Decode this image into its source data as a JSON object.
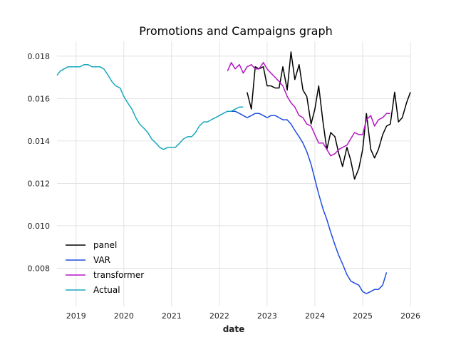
{
  "chart_data": {
    "type": "line",
    "title": "Promotions and Campaigns graph",
    "xlabel": "date",
    "ylabel": "",
    "xlim": [
      2018.6,
      2026.0
    ],
    "ylim": [
      0.0062,
      0.0187
    ],
    "x_ticks": [
      {
        "value": 2019,
        "label": "2019"
      },
      {
        "value": 2020,
        "label": "2020"
      },
      {
        "value": 2021,
        "label": "2021"
      },
      {
        "value": 2022,
        "label": "2022"
      },
      {
        "value": 2023,
        "label": "2023"
      },
      {
        "value": 2024,
        "label": "2024"
      },
      {
        "value": 2025,
        "label": "2025"
      },
      {
        "value": 2026,
        "label": "2026"
      }
    ],
    "y_ticks": [
      {
        "value": 0.008,
        "label": "0.008"
      },
      {
        "value": 0.01,
        "label": "0.010"
      },
      {
        "value": 0.012,
        "label": "0.012"
      },
      {
        "value": 0.014,
        "label": "0.014"
      },
      {
        "value": 0.016,
        "label": "0.016"
      },
      {
        "value": 0.018,
        "label": "0.018"
      }
    ],
    "grid": true,
    "legend_position": "bottom-left",
    "series": [
      {
        "name": "panel",
        "color": "#000000",
        "points": [
          [
            2022.58,
            0.0163
          ],
          [
            2022.67,
            0.0155
          ],
          [
            2022.75,
            0.0175
          ],
          [
            2022.83,
            0.0174
          ],
          [
            2022.92,
            0.0175
          ],
          [
            2023.0,
            0.0166
          ],
          [
            2023.08,
            0.0166
          ],
          [
            2023.17,
            0.0165
          ],
          [
            2023.25,
            0.0165
          ],
          [
            2023.33,
            0.0175
          ],
          [
            2023.42,
            0.0164
          ],
          [
            2023.5,
            0.0182
          ],
          [
            2023.58,
            0.0169
          ],
          [
            2023.67,
            0.0176
          ],
          [
            2023.75,
            0.0164
          ],
          [
            2023.83,
            0.0161
          ],
          [
            2023.92,
            0.0148
          ],
          [
            2024.0,
            0.0155
          ],
          [
            2024.08,
            0.0166
          ],
          [
            2024.17,
            0.0149
          ],
          [
            2024.25,
            0.0136
          ],
          [
            2024.33,
            0.0144
          ],
          [
            2024.42,
            0.0142
          ],
          [
            2024.5,
            0.0134
          ],
          [
            2024.58,
            0.0128
          ],
          [
            2024.67,
            0.0137
          ],
          [
            2024.75,
            0.0131
          ],
          [
            2024.83,
            0.0122
          ],
          [
            2024.92,
            0.0127
          ],
          [
            2025.0,
            0.0136
          ],
          [
            2025.08,
            0.0153
          ],
          [
            2025.17,
            0.0136
          ],
          [
            2025.25,
            0.0132
          ],
          [
            2025.33,
            0.0136
          ],
          [
            2025.42,
            0.0143
          ],
          [
            2025.5,
            0.0147
          ],
          [
            2025.58,
            0.0148
          ],
          [
            2025.67,
            0.0163
          ],
          [
            2025.75,
            0.0149
          ],
          [
            2025.83,
            0.0151
          ],
          [
            2025.92,
            0.0158
          ],
          [
            2026.0,
            0.0163
          ]
        ]
      },
      {
        "name": "VAR",
        "color": "#1f4de0",
        "points": [
          [
            2022.25,
            0.0154
          ],
          [
            2022.33,
            0.0154
          ],
          [
            2022.42,
            0.0153
          ],
          [
            2022.5,
            0.0152
          ],
          [
            2022.58,
            0.0151
          ],
          [
            2022.67,
            0.0152
          ],
          [
            2022.75,
            0.0153
          ],
          [
            2022.83,
            0.0153
          ],
          [
            2022.92,
            0.0152
          ],
          [
            2023.0,
            0.0151
          ],
          [
            2023.08,
            0.0152
          ],
          [
            2023.17,
            0.0152
          ],
          [
            2023.25,
            0.0151
          ],
          [
            2023.33,
            0.015
          ],
          [
            2023.42,
            0.015
          ],
          [
            2023.5,
            0.0148
          ],
          [
            2023.58,
            0.0145
          ],
          [
            2023.67,
            0.0142
          ],
          [
            2023.75,
            0.0139
          ],
          [
            2023.83,
            0.0135
          ],
          [
            2023.92,
            0.0129
          ],
          [
            2024.0,
            0.0122
          ],
          [
            2024.08,
            0.0115
          ],
          [
            2024.17,
            0.0108
          ],
          [
            2024.25,
            0.0103
          ],
          [
            2024.33,
            0.0097
          ],
          [
            2024.42,
            0.0091
          ],
          [
            2024.5,
            0.0086
          ],
          [
            2024.58,
            0.0082
          ],
          [
            2024.67,
            0.0077
          ],
          [
            2024.75,
            0.0074
          ],
          [
            2024.83,
            0.0073
          ],
          [
            2024.92,
            0.0072
          ],
          [
            2025.0,
            0.0069
          ],
          [
            2025.08,
            0.0068
          ],
          [
            2025.17,
            0.0069
          ],
          [
            2025.25,
            0.007
          ],
          [
            2025.33,
            0.007
          ],
          [
            2025.42,
            0.0072
          ],
          [
            2025.5,
            0.0078
          ]
        ]
      },
      {
        "name": "transformer",
        "color": "#b317c4",
        "points": [
          [
            2022.17,
            0.0173
          ],
          [
            2022.25,
            0.0177
          ],
          [
            2022.33,
            0.0174
          ],
          [
            2022.42,
            0.0176
          ],
          [
            2022.5,
            0.0172
          ],
          [
            2022.58,
            0.0175
          ],
          [
            2022.67,
            0.0176
          ],
          [
            2022.75,
            0.0174
          ],
          [
            2022.83,
            0.0174
          ],
          [
            2022.92,
            0.0177
          ],
          [
            2023.0,
            0.0174
          ],
          [
            2023.08,
            0.0172
          ],
          [
            2023.17,
            0.017
          ],
          [
            2023.25,
            0.0168
          ],
          [
            2023.33,
            0.0166
          ],
          [
            2023.42,
            0.0161
          ],
          [
            2023.5,
            0.0158
          ],
          [
            2023.58,
            0.0156
          ],
          [
            2023.67,
            0.0152
          ],
          [
            2023.75,
            0.0151
          ],
          [
            2023.83,
            0.0148
          ],
          [
            2023.92,
            0.0147
          ],
          [
            2024.0,
            0.0143
          ],
          [
            2024.08,
            0.0139
          ],
          [
            2024.17,
            0.0139
          ],
          [
            2024.25,
            0.0136
          ],
          [
            2024.33,
            0.0133
          ],
          [
            2024.42,
            0.0134
          ],
          [
            2024.5,
            0.0136
          ],
          [
            2024.58,
            0.0137
          ],
          [
            2024.67,
            0.0138
          ],
          [
            2024.75,
            0.0141
          ],
          [
            2024.83,
            0.0144
          ],
          [
            2024.92,
            0.0143
          ],
          [
            2025.0,
            0.0143
          ],
          [
            2025.08,
            0.015
          ],
          [
            2025.17,
            0.0152
          ],
          [
            2025.25,
            0.0147
          ],
          [
            2025.33,
            0.015
          ],
          [
            2025.42,
            0.0151
          ],
          [
            2025.5,
            0.0153
          ],
          [
            2025.58,
            0.0153
          ]
        ]
      },
      {
        "name": "Actual",
        "color": "#17a9bd",
        "points": [
          [
            2018.6,
            0.0171
          ],
          [
            2018.67,
            0.0173
          ],
          [
            2018.75,
            0.0174
          ],
          [
            2018.83,
            0.0175
          ],
          [
            2018.92,
            0.0175
          ],
          [
            2019.0,
            0.0175
          ],
          [
            2019.08,
            0.0175
          ],
          [
            2019.17,
            0.0176
          ],
          [
            2019.25,
            0.0176
          ],
          [
            2019.33,
            0.0175
          ],
          [
            2019.42,
            0.0175
          ],
          [
            2019.5,
            0.0175
          ],
          [
            2019.58,
            0.0174
          ],
          [
            2019.67,
            0.0171
          ],
          [
            2019.75,
            0.0168
          ],
          [
            2019.83,
            0.0166
          ],
          [
            2019.92,
            0.0165
          ],
          [
            2020.0,
            0.0161
          ],
          [
            2020.08,
            0.0158
          ],
          [
            2020.17,
            0.0155
          ],
          [
            2020.25,
            0.0151
          ],
          [
            2020.33,
            0.0148
          ],
          [
            2020.42,
            0.0146
          ],
          [
            2020.5,
            0.0144
          ],
          [
            2020.58,
            0.0141
          ],
          [
            2020.67,
            0.0139
          ],
          [
            2020.75,
            0.0137
          ],
          [
            2020.83,
            0.0136
          ],
          [
            2020.92,
            0.0137
          ],
          [
            2021.0,
            0.0137
          ],
          [
            2021.08,
            0.0137
          ],
          [
            2021.17,
            0.0139
          ],
          [
            2021.25,
            0.0141
          ],
          [
            2021.33,
            0.0142
          ],
          [
            2021.42,
            0.0142
          ],
          [
            2021.5,
            0.0144
          ],
          [
            2021.58,
            0.0147
          ],
          [
            2021.67,
            0.0149
          ],
          [
            2021.75,
            0.0149
          ],
          [
            2021.83,
            0.015
          ],
          [
            2021.92,
            0.0151
          ],
          [
            2022.0,
            0.0152
          ],
          [
            2022.08,
            0.0153
          ],
          [
            2022.17,
            0.0154
          ],
          [
            2022.25,
            0.0154
          ],
          [
            2022.33,
            0.0155
          ],
          [
            2022.42,
            0.0156
          ],
          [
            2022.5,
            0.0156
          ]
        ]
      }
    ]
  }
}
